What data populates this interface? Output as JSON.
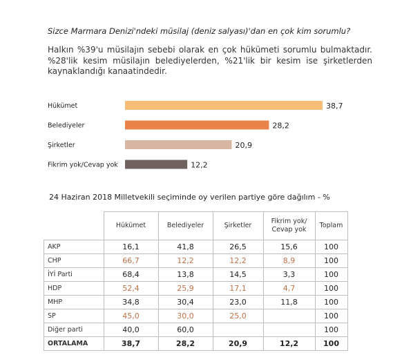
{
  "question": "Sizce Marmara Denizi'ndeki müsilaj (deniz salyası)'dan en çok kim sorumlu?",
  "summary": "Halkın %39'u müsilajın sebebi olarak en çok hükümeti sorumlu bulmaktadır. %28'lik kesim müsilajın belediyelerden, %21'lik bir kesim ise şirketlerden kaynaklandığı kanaatindedir.",
  "chart_data": [
    {
      "type": "bar",
      "orientation": "horizontal",
      "categories": [
        "Hükümet",
        "Belediyeler",
        "Şirketler",
        "Fikrim yok/Cevap yok"
      ],
      "values": [
        38.7,
        28.2,
        20.9,
        12.2
      ],
      "value_labels": [
        "38,7",
        "28,2",
        "20,9",
        "12,2"
      ],
      "colors": [
        "#f7bd78",
        "#e9834a",
        "#d9b6a3",
        "#6f625f"
      ],
      "xlim": [
        0,
        38.7
      ],
      "grid": false
    },
    {
      "type": "table",
      "title": "24 Haziran 2018 Milletvekili seçiminde oy verilen partiye göre dağılım - %",
      "columns": [
        "Hükümet",
        "Belediyeler",
        "Şirketler",
        "Fikrim yok/ Cevap yok",
        "Toplam"
      ],
      "rows": [
        {
          "label": "AKP",
          "values": [
            "16,1",
            "41,8",
            "26,5",
            "15,6",
            "100"
          ]
        },
        {
          "label": "CHP",
          "values": [
            "66,7",
            "12,2",
            "12,2",
            "8,9",
            "100"
          ]
        },
        {
          "label": "İYİ Parti",
          "values": [
            "68,4",
            "13,8",
            "14,5",
            "3,3",
            "100"
          ]
        },
        {
          "label": "HDP",
          "values": [
            "52,4",
            "25,9",
            "17,1",
            "4,7",
            "100"
          ]
        },
        {
          "label": "MHP",
          "values": [
            "34,8",
            "30,4",
            "23,0",
            "11,8",
            "100"
          ]
        },
        {
          "label": "SP",
          "values": [
            "45,0",
            "30,0",
            "25,0",
            "",
            "100"
          ]
        },
        {
          "label": "Diğer parti",
          "values": [
            "40,0",
            "60,0",
            "",
            "",
            "100"
          ]
        },
        {
          "label": "ORTALAMA",
          "values": [
            "38,7",
            "28,2",
            "20,9",
            "12,2",
            "100"
          ]
        }
      ],
      "alt_row_color": "#c0714a"
    }
  ]
}
